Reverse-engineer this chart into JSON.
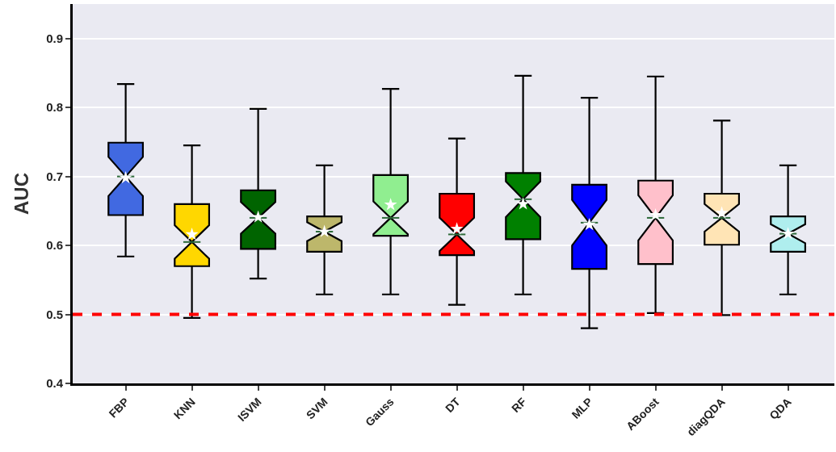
{
  "chart_data": {
    "type": "box",
    "ylabel": "AUC",
    "categories": [
      "FBP",
      "KNN",
      "ISVM",
      "SVM",
      "Gauss",
      "DT",
      "RF",
      "MLP",
      "ABoost",
      "diagQDA",
      "QDA"
    ],
    "colors": [
      "#4169e1",
      "#ffd700",
      "#006400",
      "#bdb76b",
      "#90ee90",
      "#ff0000",
      "#008000",
      "#0000ff",
      "#ffc0cb",
      "#ffe4b5",
      "#afeeee"
    ],
    "boxes": [
      {
        "low": 0.584,
        "q1": 0.644,
        "median": 0.7,
        "q3": 0.749,
        "high": 0.834,
        "mean": 0.698
      },
      {
        "low": 0.495,
        "q1": 0.57,
        "median": 0.605,
        "q3": 0.66,
        "high": 0.745,
        "mean": 0.616
      },
      {
        "low": 0.552,
        "q1": 0.595,
        "median": 0.64,
        "q3": 0.68,
        "high": 0.798,
        "mean": 0.641
      },
      {
        "low": 0.529,
        "q1": 0.591,
        "median": 0.62,
        "q3": 0.642,
        "high": 0.716,
        "mean": 0.62
      },
      {
        "low": 0.529,
        "q1": 0.614,
        "median": 0.64,
        "q3": 0.702,
        "high": 0.827,
        "mean": 0.659
      },
      {
        "low": 0.514,
        "q1": 0.586,
        "median": 0.616,
        "q3": 0.675,
        "high": 0.755,
        "mean": 0.624
      },
      {
        "low": 0.529,
        "q1": 0.609,
        "median": 0.667,
        "q3": 0.705,
        "high": 0.846,
        "mean": 0.66
      },
      {
        "low": 0.48,
        "q1": 0.566,
        "median": 0.633,
        "q3": 0.688,
        "high": 0.814,
        "mean": 0.63
      },
      {
        "low": 0.502,
        "q1": 0.573,
        "median": 0.64,
        "q3": 0.694,
        "high": 0.845,
        "mean": 0.644
      },
      {
        "low": 0.499,
        "q1": 0.601,
        "median": 0.64,
        "q3": 0.675,
        "high": 0.781,
        "mean": 0.647
      },
      {
        "low": 0.529,
        "q1": 0.591,
        "median": 0.617,
        "q3": 0.642,
        "high": 0.716,
        "mean": 0.617
      }
    ],
    "ylim": [
      0.4,
      0.95
    ],
    "yticks": [
      0.4,
      0.5,
      0.6,
      0.7,
      0.8,
      0.9
    ],
    "ref_lines": [
      {
        "axis": "y",
        "value": 0.5,
        "color": "#ff0000",
        "line_style": "dashed"
      }
    ],
    "grid": "y",
    "marker": "star"
  }
}
